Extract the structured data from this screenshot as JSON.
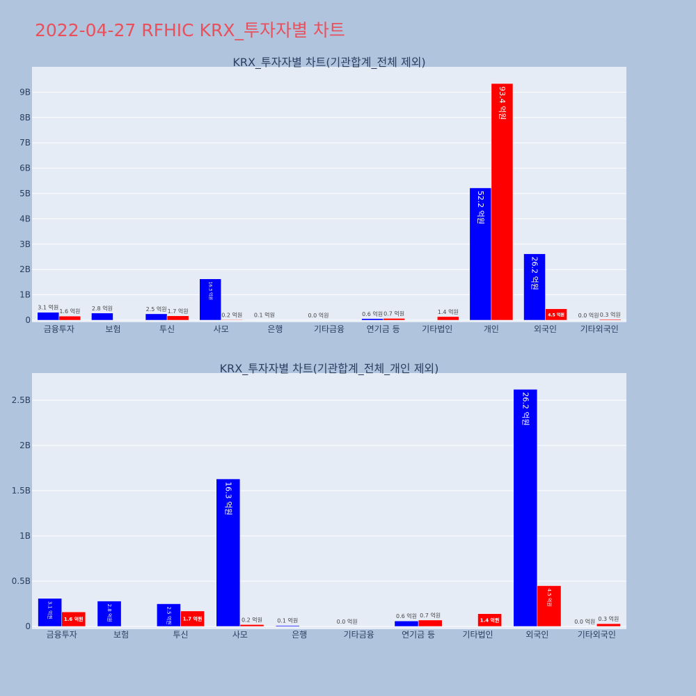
{
  "page": {
    "title": "2022-04-27 RFHIC KRX_투자자별 차트"
  },
  "colors": {
    "buy": "#0000ff",
    "sell": "#ff0000",
    "plot_bg": "#e5ecf6",
    "page_bg": "#b0c4de",
    "title": "#e8505b"
  },
  "chart_data": [
    {
      "type": "bar",
      "title": "KRX_투자자별 차트(기관합계_전체 제외)",
      "categories": [
        "금융투자",
        "보험",
        "투신",
        "사모",
        "은행",
        "기타금융",
        "연기금 등",
        "기타법인",
        "개인",
        "외국인",
        "기타외국인"
      ],
      "series": [
        {
          "values": [
            0.31,
            0.28,
            0.25,
            1.63,
            0.01,
            0.0,
            0.06,
            0.0,
            5.22,
            2.62,
            0.0
          ],
          "labels": [
            "3.1 억원",
            "2.8 억원",
            "2.5 억원",
            "16.3 억원",
            "0.1 억원",
            "0.0 억원",
            "0.6 억원",
            "",
            "52.2 억원",
            "26.2 억원",
            "0.0 억원"
          ]
        },
        {
          "values": [
            0.16,
            0.0,
            0.17,
            0.02,
            0.0,
            0.0,
            0.07,
            0.14,
            9.34,
            0.45,
            0.03
          ],
          "labels": [
            "1.6 억원",
            "",
            "1.7 억원",
            "0.2 억원",
            "",
            "",
            "0.7 억원",
            "1.4 억원",
            "93.4 억원",
            "4.5 억원",
            "0.3 억원"
          ]
        }
      ],
      "ylim": [
        0,
        10
      ],
      "yticks": [
        0,
        1,
        2,
        3,
        4,
        5,
        6,
        7,
        8,
        9
      ],
      "ytick_labels": [
        "0",
        "1B",
        "2B",
        "3B",
        "4B",
        "5B",
        "6B",
        "7B",
        "8B",
        "9B"
      ],
      "grid": true
    },
    {
      "type": "bar",
      "title": "KRX_투자자별 차트(기관합계_전체_개인 제외)",
      "categories": [
        "금융투자",
        "보험",
        "투신",
        "사모",
        "은행",
        "기타금융",
        "연기금 등",
        "기타법인",
        "외국인",
        "기타외국인"
      ],
      "series": [
        {
          "values": [
            0.31,
            0.28,
            0.25,
            1.63,
            0.01,
            0.0,
            0.06,
            0.0,
            2.62,
            0.0
          ],
          "labels": [
            "3.1 억원",
            "2.8 억원",
            "2.5 억원",
            "16.3 억원",
            "0.1 억원",
            "0.0 억원",
            "0.6 억원",
            "",
            "26.2 억원",
            "0.0 억원"
          ]
        },
        {
          "values": [
            0.16,
            0.0,
            0.17,
            0.02,
            0.0,
            0.0,
            0.07,
            0.14,
            0.45,
            0.03
          ],
          "labels": [
            "1.6 억원",
            "",
            "1.7 억원",
            "0.2 억원",
            "",
            "",
            "0.7 억원",
            "1.4 억원",
            "4.5 억원",
            "0.3 억원"
          ]
        }
      ],
      "ylim": [
        0,
        2.8
      ],
      "yticks": [
        0,
        0.5,
        1,
        1.5,
        2,
        2.5
      ],
      "ytick_labels": [
        "0",
        "0.5B",
        "1B",
        "1.5B",
        "2B",
        "2.5B"
      ],
      "grid": true
    }
  ]
}
